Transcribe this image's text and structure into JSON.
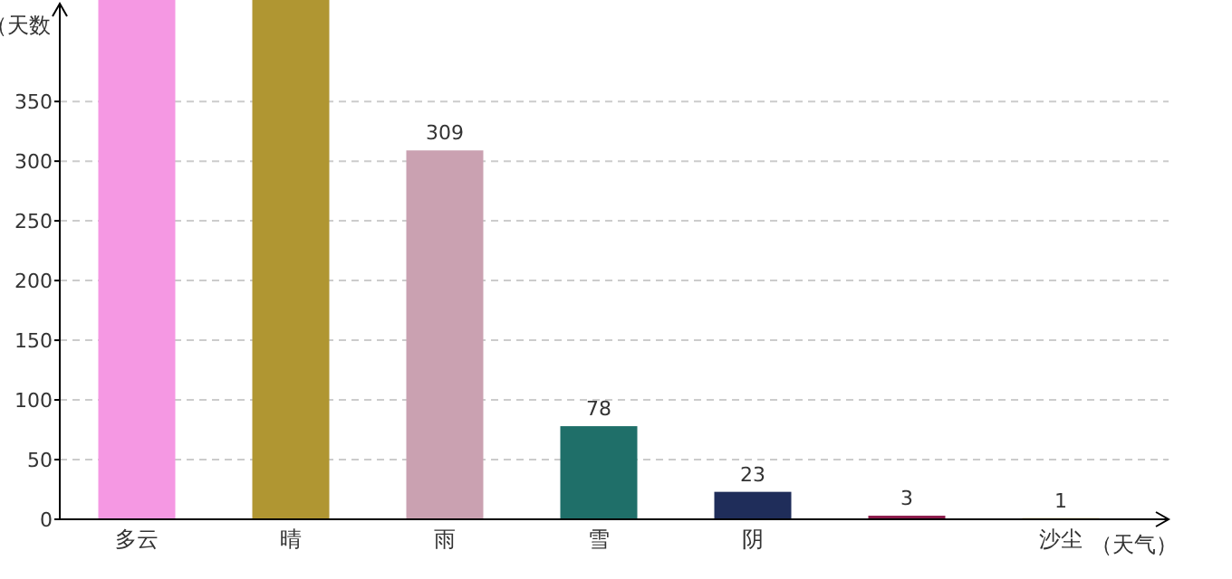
{
  "chart_data": {
    "type": "bar",
    "xlabel": "（天气）",
    "ylabel": "（天数",
    "categories": [
      "多云",
      "晴",
      "雨",
      "雪",
      "阴",
      null,
      "沙尘"
    ],
    "values": [
      435,
      435,
      309,
      78,
      23,
      3,
      1
    ],
    "value_labels": [
      null,
      null,
      "309",
      "78",
      "23",
      "3",
      "1"
    ],
    "colors": [
      "#f598e3",
      "#b09632",
      "#caa1b1",
      "#1f6f69",
      "#1f2d5a",
      "#8b1a4a",
      "#d9b36b"
    ],
    "ylim": [
      0,
      435
    ],
    "yticks": [
      0,
      50,
      100,
      150,
      200,
      250,
      300,
      350
    ],
    "grid": "y"
  }
}
